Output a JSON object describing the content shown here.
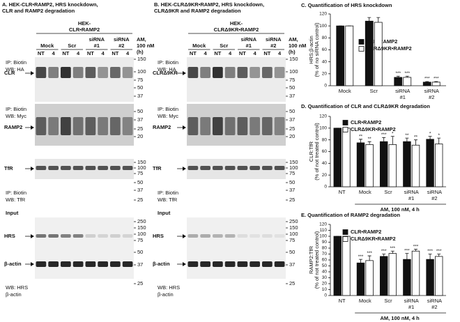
{
  "panels": [
    {
      "title": [
        "A. HEK-CLR•RAMP2, HRS knockdown,",
        "CLR and RAMP2 degradation"
      ],
      "cell": [
        "HEK-",
        "CLR•RAMP2"
      ],
      "groups": [
        [
          "Mock"
        ],
        [
          "Scr"
        ],
        [
          "siRNA",
          "#1"
        ],
        [
          "siRNA",
          "#2"
        ]
      ],
      "lanes": [
        "NT",
        "4",
        "NT",
        "4",
        "NT",
        "4",
        "NT",
        "4"
      ],
      "treatment": [
        "AM,",
        "100 nM",
        "(h)"
      ],
      "blots": [
        {
          "labels": [
            "IP: Biotin",
            "WB: HA"
          ],
          "targets": [
            "CLR"
          ],
          "markers": [
            "150",
            "100",
            "75",
            "50",
            "37"
          ]
        },
        {
          "labels": [
            "IP: Biotin",
            "WB: Myc"
          ],
          "targets": [
            "RAMP2"
          ],
          "markers": [
            "50",
            "37",
            "25",
            "20"
          ]
        },
        {
          "labels": [
            "IP: Biotin",
            "WB: TfR"
          ],
          "targets": [
            "TfR"
          ],
          "markers": [
            "150",
            "100",
            "75",
            "50",
            "37",
            "25"
          ]
        },
        {
          "header": "Input",
          "labels": [
            "WB: HRS",
            "β-actin"
          ],
          "targets": [
            "HRS",
            "β-actin"
          ],
          "markers": [
            "250",
            "150",
            "100",
            "75",
            "50",
            "37",
            "25"
          ]
        }
      ]
    },
    {
      "title": [
        "B. HEK-CLRΔ9KR•RAMP2, HRS knockdown,",
        "CLRΔ9KR and RAMP2 degradation"
      ],
      "cell": [
        "HEK-",
        "CLRΔ9KR•RAMP2"
      ],
      "groups": [
        [
          "Mock"
        ],
        [
          "Scr"
        ],
        [
          "siRNA",
          "#1"
        ],
        [
          "siRNA",
          "#2"
        ]
      ],
      "lanes": [
        "NT",
        "4",
        "NT",
        "4",
        "NT",
        "4",
        "NT",
        "4"
      ],
      "treatment": [
        "AM,",
        "100 nM",
        "(h)"
      ],
      "blots": [
        {
          "labels": [
            "IP: Biotin",
            "WB: HA"
          ],
          "targets": [
            "CLRΔ9KR"
          ],
          "markers": [
            "150",
            "100",
            "75",
            "50",
            "37"
          ]
        },
        {
          "labels": [
            "IP: Biotin",
            "WB: Myc"
          ],
          "targets": [
            "RAMP2"
          ],
          "markers": [
            "50",
            "37",
            "25",
            "20"
          ]
        },
        {
          "labels": [
            "IP: Biotin",
            "WB: TfR"
          ],
          "targets": [
            "TfR"
          ],
          "markers": [
            "150",
            "100",
            "75",
            "50",
            "37",
            "25"
          ]
        },
        {
          "header": "Input",
          "labels": [
            "WB: HRS",
            "β-actin"
          ],
          "targets": [
            "HRS",
            "β-actin"
          ],
          "markers": [
            "250",
            "150",
            "100",
            "75",
            "50",
            "37",
            "25"
          ]
        }
      ]
    }
  ],
  "chart_data": [
    {
      "type": "bar",
      "title": "C. Quantification of HRS knockdown",
      "ylabel": [
        "HRS:β-actin",
        "(% of no siRNA control)"
      ],
      "categories": [
        [
          "Mock"
        ],
        [
          "Scr"
        ],
        [
          "siRNA",
          "#1"
        ],
        [
          "siRNA",
          "#2"
        ]
      ],
      "ylim": [
        0,
        120
      ],
      "yticks": [
        0,
        20,
        40,
        60,
        80,
        100,
        120
      ],
      "series": [
        {
          "name": "CLR•RAMP2",
          "color": "#111111",
          "values": [
            100,
            108,
            14,
            6
          ],
          "errors": [
            0,
            6,
            2,
            1
          ],
          "significance": [
            null,
            null,
            "***",
            "***"
          ]
        },
        {
          "name": "CLRΔ9KR•RAMP2",
          "color": "#ffffff",
          "values": [
            100,
            106,
            14,
            6
          ],
          "errors": [
            0,
            8,
            2,
            1
          ],
          "significance": [
            null,
            null,
            "***",
            "***"
          ]
        }
      ]
    },
    {
      "type": "bar",
      "title": "D. Quantification of CLR and CLRΔ9KR degradation",
      "ylabel": [
        "CLR:TfR",
        "(% of not treated control)"
      ],
      "categories": [
        [
          "NT"
        ],
        [
          "Mock"
        ],
        [
          "Scr"
        ],
        [
          "siRNA",
          "#1"
        ],
        [
          "siRNA",
          "#2"
        ]
      ],
      "xlabel": "AM, 100 nM, 4 h",
      "ylim": [
        0,
        120
      ],
      "yticks": [
        0,
        20,
        40,
        60,
        80,
        100,
        120
      ],
      "series": [
        {
          "name": "CLR•RAMP2",
          "color": "#111111",
          "values": [
            100,
            75,
            77,
            77,
            81
          ],
          "errors": [
            0,
            6,
            7,
            6,
            5
          ],
          "significance": [
            null,
            "**",
            "***",
            "**",
            "*"
          ]
        },
        {
          "name": "CLRΔ9KR•RAMP2",
          "color": "#ffffff",
          "values": [
            100,
            72,
            72,
            71,
            73
          ],
          "errors": [
            0,
            5,
            14,
            9,
            10
          ],
          "significance": [
            null,
            "**",
            "*",
            "**",
            "*"
          ]
        }
      ]
    },
    {
      "type": "bar",
      "title": "E. Quantification of RAMP2 degradation",
      "ylabel": [
        "RAMP2:TfR",
        "(% of not treated control)"
      ],
      "categories": [
        [
          "NT"
        ],
        [
          "Mock"
        ],
        [
          "Scr"
        ],
        [
          "siRNA",
          "#1"
        ],
        [
          "siRNA",
          "#2"
        ]
      ],
      "xlabel": "AM, 100 nM, 4 h",
      "ylim": [
        0,
        120
      ],
      "yticks": [
        0,
        10,
        20,
        30,
        40,
        50,
        60,
        70,
        80,
        90,
        100,
        110,
        120
      ],
      "series": [
        {
          "name": "CLR•RAMP2",
          "color": "#111111",
          "values": [
            100,
            55,
            66,
            61,
            61
          ],
          "errors": [
            0,
            6,
            4,
            10,
            9
          ],
          "significance": [
            null,
            "***",
            "***",
            "***",
            "***"
          ]
        },
        {
          "name": "CLRΔ9KR•RAMP2",
          "color": "#ffffff",
          "values": [
            100,
            59,
            71,
            75,
            66
          ],
          "errors": [
            0,
            8,
            4,
            3,
            4
          ],
          "significance": [
            null,
            "***",
            "***",
            "***",
            "***"
          ]
        }
      ]
    }
  ]
}
